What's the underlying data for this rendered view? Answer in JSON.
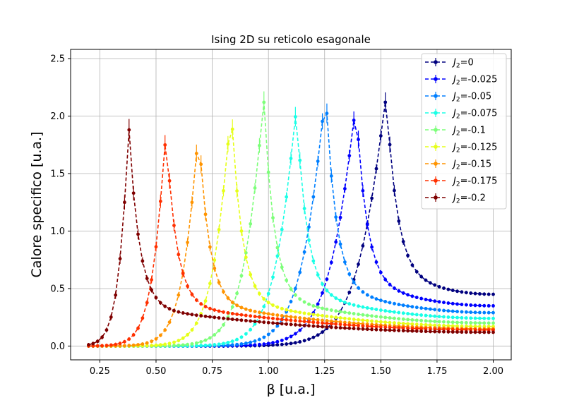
{
  "chart_data": {
    "type": "line",
    "title": "Ising 2D su reticolo esagonale",
    "xlabel": "β [u.a.]",
    "ylabel": "Calore specifico [u.a.]",
    "xlim": [
      0.12,
      2.08
    ],
    "ylim": [
      -0.12,
      2.58
    ],
    "xticks": [
      0.25,
      0.5,
      0.75,
      1.0,
      1.25,
      1.5,
      1.75,
      2.0
    ],
    "xtick_labels": [
      "0.25",
      "0.50",
      "0.75",
      "1.00",
      "1.25",
      "1.50",
      "1.75",
      "2.00"
    ],
    "yticks": [
      0.0,
      0.5,
      1.0,
      1.5,
      2.0,
      2.5
    ],
    "ytick_labels": [
      "0.0",
      "0.5",
      "1.0",
      "1.5",
      "2.0",
      "2.5"
    ],
    "grid": true,
    "legend_position": "top-right",
    "x_range": [
      0.2,
      2.0
    ],
    "series": [
      {
        "name": "J2=0",
        "legend_j": "J",
        "legend_sub": "2",
        "legend_val": "=0",
        "color": "#00007f",
        "beta_c": 1.525,
        "peak": 2.18,
        "tail_end": 0.45,
        "left_width": 0.26
      },
      {
        "name": "J2=-0.025",
        "legend_j": "J",
        "legend_sub": "2",
        "legend_val": "=-0.025",
        "color": "#0000ff",
        "beta_c": 1.39,
        "peak": 2.1,
        "tail_end": 0.35,
        "left_width": 0.24
      },
      {
        "name": "J2=-0.05",
        "legend_j": "J",
        "legend_sub": "2",
        "legend_val": "=-0.05",
        "color": "#007fff",
        "beta_c": 1.255,
        "peak": 2.2,
        "tail_end": 0.29,
        "left_width": 0.22
      },
      {
        "name": "J2=-0.075",
        "legend_j": "J",
        "legend_sub": "2",
        "legend_val": "=-0.075",
        "color": "#19ffe6",
        "beta_c": 1.125,
        "peak": 2.07,
        "tail_end": 0.24,
        "left_width": 0.2
      },
      {
        "name": "J2=-0.1",
        "legend_j": "J",
        "legend_sub": "2",
        "legend_val": "=-0.1",
        "color": "#7dff7a",
        "beta_c": 0.98,
        "peak": 2.12,
        "tail_end": 0.2,
        "left_width": 0.19
      },
      {
        "name": "J2=-0.125",
        "legend_j": "J",
        "legend_sub": "2",
        "legend_val": "=-0.125",
        "color": "#e6ff19",
        "beta_c": 0.835,
        "peak": 2.06,
        "tail_end": 0.17,
        "left_width": 0.17
      },
      {
        "name": "J2=-0.15",
        "legend_j": "J",
        "legend_sub": "2",
        "legend_val": "=-0.15",
        "color": "#ff9400",
        "beta_c": 0.69,
        "peak": 1.88,
        "tail_end": 0.15,
        "left_width": 0.15
      },
      {
        "name": "J2=-0.175",
        "legend_j": "J",
        "legend_sub": "2",
        "legend_val": "=-0.175",
        "color": "#ff3000",
        "beta_c": 0.545,
        "peak": 1.86,
        "tail_end": 0.14,
        "left_width": 0.13
      },
      {
        "name": "J2=-0.2",
        "legend_j": "J",
        "legend_sub": "2",
        "legend_val": "=-0.2",
        "color": "#7f0000",
        "beta_c": 0.38,
        "peak": 1.88,
        "tail_end": 0.12,
        "left_width": 0.1
      }
    ]
  }
}
